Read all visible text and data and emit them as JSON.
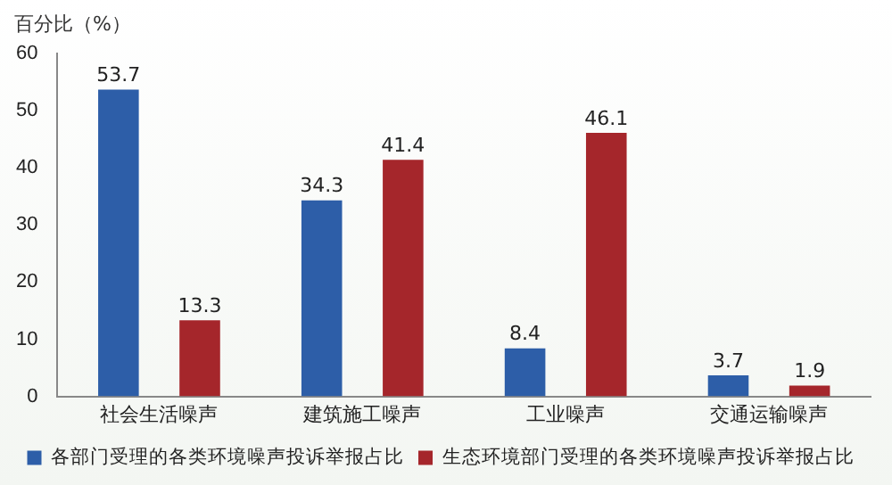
{
  "chart_data": {
    "type": "bar",
    "ylabel": "百分比（%）",
    "categories": [
      "社会生活噪声",
      "建筑施工噪声",
      "工业噪声",
      "交通运输噪声"
    ],
    "series": [
      {
        "name": "各部门受理的各类环境噪声投诉举报占比",
        "color": "#2d5ea8",
        "values": [
          53.7,
          34.3,
          8.4,
          3.7
        ]
      },
      {
        "name": "生态环境部门受理的各类环境噪声投诉举报占比",
        "color": "#a5262b",
        "values": [
          13.3,
          41.4,
          46.1,
          1.9
        ]
      }
    ],
    "ylim": [
      0,
      60
    ],
    "yticks": [
      0,
      10,
      20,
      30,
      40,
      50,
      60
    ],
    "grid": false,
    "legend": "bottom",
    "data_labels": true
  }
}
